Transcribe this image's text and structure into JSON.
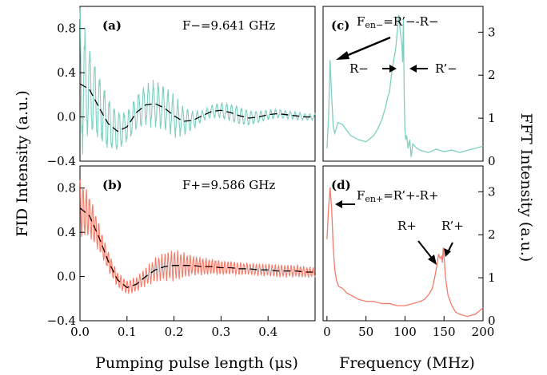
{
  "ylabel_left": "FID Intensity (a.u.)",
  "ylabel_right": "FFT Intensity (a.u.)",
  "colors": {
    "minus": "#7ecfc0",
    "plus": "#f37b6a",
    "fit": "#000000"
  },
  "chart_data": [
    {
      "id": "a",
      "type": "line",
      "panel_label": "(a)",
      "annotation": "F−=9.641 GHz",
      "xlabel": "",
      "ylabel": "FID Intensity (a.u.)",
      "xlim": [
        0,
        0.5
      ],
      "ylim": [
        -0.4,
        1.0
      ],
      "yticks": [
        "−0.4",
        "0.0",
        "0.4",
        "0.8"
      ],
      "xticks_visible": false,
      "series": [
        {
          "style": "oscillating",
          "envelope_x": [
            0,
            0.02,
            0.05,
            0.08,
            0.1,
            0.13,
            0.17,
            0.2,
            0.23,
            0.26,
            0.3,
            0.33,
            0.37,
            0.4,
            0.45,
            0.5
          ],
          "envelope_y": [
            0.75,
            0.45,
            0.3,
            0.22,
            0.15,
            0.2,
            0.24,
            0.2,
            0.12,
            0.05,
            0.08,
            0.1,
            0.07,
            0.05,
            0.04,
            0.03
          ],
          "carrier_period_us": 0.0104
        },
        {
          "style": "dashed-fit",
          "x": [
            0,
            0.02,
            0.04,
            0.06,
            0.08,
            0.1,
            0.12,
            0.14,
            0.16,
            0.18,
            0.2,
            0.22,
            0.24,
            0.26,
            0.28,
            0.3,
            0.32,
            0.34,
            0.36,
            0.38,
            0.4,
            0.42,
            0.44,
            0.46,
            0.48,
            0.5
          ],
          "y": [
            0.3,
            0.25,
            0.09,
            -0.06,
            -0.13,
            -0.09,
            0.04,
            0.11,
            0.12,
            0.08,
            0.01,
            -0.04,
            -0.03,
            0.01,
            0.05,
            0.06,
            0.04,
            0.01,
            -0.01,
            0.0,
            0.02,
            0.03,
            0.02,
            0.01,
            0.0,
            0.0
          ]
        }
      ]
    },
    {
      "id": "b",
      "type": "line",
      "panel_label": "(b)",
      "annotation": "F+=9.586 GHz",
      "xlabel": "Pumping pulse length (μs)",
      "ylabel": "FID Intensity (a.u.)",
      "xlim": [
        0,
        0.5
      ],
      "ylim": [
        -0.4,
        1.0
      ],
      "xticks": [
        0.0,
        0.1,
        0.2,
        0.3,
        0.4
      ],
      "xtick_labels": [
        "0.0",
        "0.1",
        "0.2",
        "0.3",
        "0.4"
      ],
      "yticks": [
        "−0.4",
        "0.0",
        "0.4",
        "0.8"
      ],
      "series": [
        {
          "style": "oscillating",
          "envelope_x": [
            0,
            0.02,
            0.05,
            0.08,
            0.1,
            0.13,
            0.17,
            0.2,
            0.24,
            0.28,
            0.32,
            0.36,
            0.4,
            0.45,
            0.5
          ],
          "envelope_y": [
            0.3,
            0.22,
            0.12,
            0.08,
            0.07,
            0.08,
            0.13,
            0.15,
            0.1,
            0.08,
            0.07,
            0.06,
            0.06,
            0.06,
            0.05
          ],
          "carrier_period_us": 0.0067
        },
        {
          "style": "dashed-fit",
          "x": [
            0,
            0.02,
            0.04,
            0.06,
            0.08,
            0.1,
            0.12,
            0.14,
            0.16,
            0.18,
            0.2,
            0.22,
            0.24,
            0.26,
            0.28,
            0.3,
            0.32,
            0.34,
            0.36,
            0.38,
            0.4,
            0.42,
            0.44,
            0.46,
            0.48,
            0.5
          ],
          "y": [
            0.62,
            0.55,
            0.36,
            0.14,
            -0.03,
            -0.1,
            -0.07,
            0.0,
            0.06,
            0.09,
            0.1,
            0.1,
            0.1,
            0.09,
            0.09,
            0.08,
            0.08,
            0.07,
            0.07,
            0.06,
            0.06,
            0.05,
            0.05,
            0.05,
            0.04,
            0.04
          ]
        }
      ]
    },
    {
      "id": "c",
      "type": "line",
      "panel_label": "(c)",
      "xlabel": "",
      "ylabel": "FFT Intensity (a.u.)",
      "xlim": [
        -5,
        200
      ],
      "ylim": [
        0,
        3.6
      ],
      "yticks": [
        "0",
        "1",
        "2",
        "3"
      ],
      "xticks_visible": false,
      "annotations": [
        "F",
        "en−",
        "=R’−-R−",
        "R−",
        "R’−"
      ],
      "series": [
        {
          "style": "solid",
          "x": [
            0,
            2,
            4,
            6,
            8,
            10,
            14,
            20,
            30,
            40,
            50,
            60,
            65,
            70,
            75,
            78,
            80,
            82,
            84,
            86,
            88,
            90,
            92,
            94,
            96,
            97,
            98,
            99,
            100,
            101,
            102,
            104,
            106,
            108,
            110,
            115,
            120,
            130,
            140,
            150,
            160,
            170,
            180,
            190,
            200
          ],
          "y": [
            0.3,
            1.0,
            2.35,
            1.5,
            0.8,
            0.65,
            0.9,
            0.85,
            0.6,
            0.5,
            0.45,
            0.6,
            0.75,
            0.95,
            1.25,
            1.5,
            1.6,
            1.9,
            2.2,
            2.4,
            2.6,
            3.0,
            3.4,
            3.0,
            2.7,
            2.3,
            3.3,
            1.5,
            0.7,
            0.5,
            0.6,
            0.3,
            0.5,
            0.1,
            0.4,
            0.3,
            0.25,
            0.2,
            0.28,
            0.22,
            0.26,
            0.2,
            0.25,
            0.3,
            0.35
          ]
        }
      ]
    },
    {
      "id": "d",
      "type": "line",
      "panel_label": "(d)",
      "xlabel": "Frequency (MHz)",
      "ylabel": "FFT Intensity (a.u.)",
      "xlim": [
        -5,
        200
      ],
      "ylim": [
        0,
        3.6
      ],
      "xticks": [
        0,
        50,
        100,
        150,
        200
      ],
      "xtick_labels": [
        "0",
        "50",
        "100",
        "150",
        "200"
      ],
      "yticks": [
        "0",
        "1",
        "2",
        "3"
      ],
      "annotations": [
        "F",
        "en+",
        "=R’+-R+",
        "R+",
        "R’+"
      ],
      "series": [
        {
          "style": "solid",
          "x": [
            0,
            2,
            4,
            6,
            8,
            10,
            12,
            15,
            20,
            25,
            30,
            40,
            50,
            60,
            70,
            80,
            90,
            100,
            110,
            120,
            125,
            130,
            135,
            138,
            141,
            143,
            145,
            147,
            148,
            149,
            150,
            152,
            155,
            160,
            165,
            170,
            180,
            190,
            200
          ],
          "y": [
            1.9,
            2.6,
            3.1,
            2.6,
            1.7,
            1.2,
            0.95,
            0.8,
            0.75,
            0.65,
            0.6,
            0.5,
            0.45,
            0.45,
            0.4,
            0.4,
            0.35,
            0.35,
            0.4,
            0.45,
            0.5,
            0.6,
            0.75,
            1.0,
            1.3,
            1.55,
            1.45,
            1.5,
            1.35,
            1.7,
            1.5,
            1.0,
            0.6,
            0.35,
            0.2,
            0.15,
            0.1,
            0.15,
            0.3
          ]
        }
      ]
    }
  ]
}
